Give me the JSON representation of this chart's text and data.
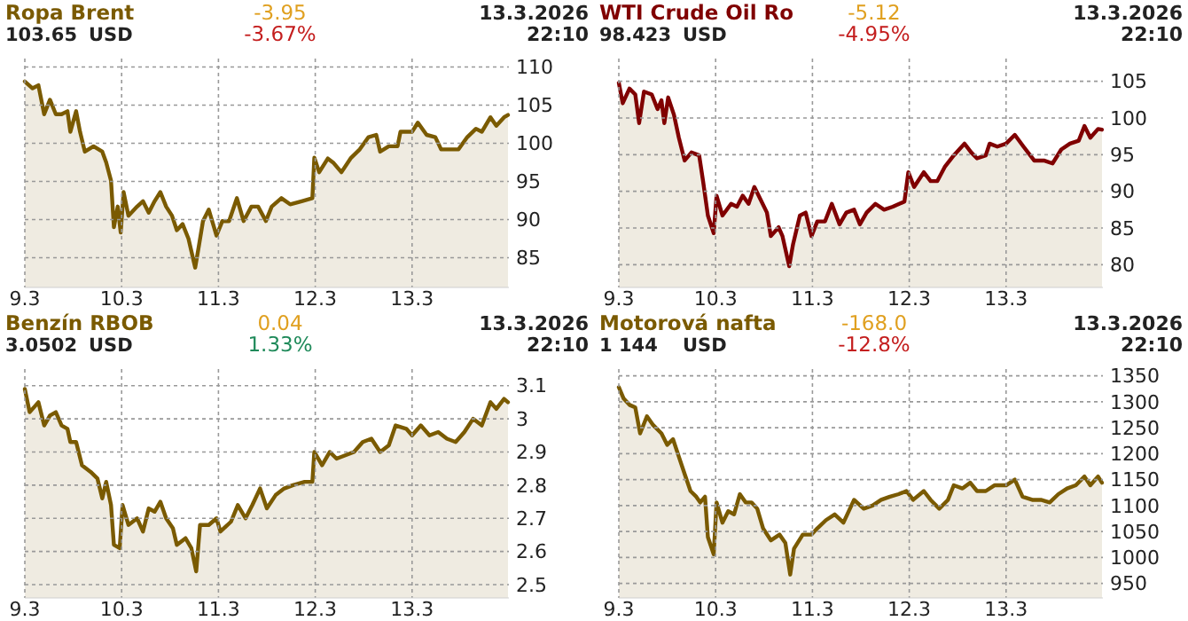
{
  "chart_data": [
    {
      "type": "area",
      "title": "Ropa Brent",
      "annotations": [
        "103.65",
        "USD",
        "-3.95",
        "-3.67%",
        "13.3.2026",
        "22:10"
      ],
      "x": [
        "2026-03-09T00:00",
        "2026-03-09T01:55",
        "2026-03-09T03:22",
        "2026-03-09T04:48",
        "2026-03-09T06:14",
        "2026-03-09T07:41",
        "2026-03-09T09:07",
        "2026-03-09T10:34",
        "2026-03-09T11:17",
        "2026-03-09T12:43",
        "2026-03-09T13:41",
        "2026-03-09T14:53",
        "2026-03-09T17:02",
        "2026-03-09T19:12",
        "2026-03-09T20:10",
        "2026-03-09T21:22",
        "2026-03-09T22:05",
        "2026-03-09T23:02",
        "2026-03-09T23:46",
        "2026-03-10T00:29",
        "2026-03-10T01:41",
        "2026-03-10T03:50",
        "2026-03-10T05:17",
        "2026-03-10T06:43",
        "2026-03-10T08:10",
        "2026-03-10T09:36",
        "2026-03-10T11:02",
        "2026-03-10T12:29",
        "2026-03-10T13:41",
        "2026-03-10T15:07",
        "2026-03-10T16:34",
        "2026-03-10T18:14",
        "2026-03-10T19:12",
        "2026-03-10T20:10",
        "2026-03-10T21:36",
        "2026-03-10T23:31",
        "2026-03-11T00:58",
        "2026-03-11T02:38",
        "2026-03-11T04:34",
        "2026-03-11T06:14",
        "2026-03-11T08:10",
        "2026-03-11T09:50",
        "2026-03-11T11:46",
        "2026-03-11T13:12",
        "2026-03-11T15:36",
        "2026-03-11T17:46",
        "2026-03-11T20:38",
        "2026-03-11T23:17",
        "2026-03-11T23:46",
        "2026-03-12T00:58",
        "2026-03-12T03:07",
        "2026-03-12T04:34",
        "2026-03-12T06:29",
        "2026-03-12T08:53",
        "2026-03-12T11:02",
        "2026-03-12T13:12",
        "2026-03-12T15:07",
        "2026-03-12T16:05",
        "2026-03-12T18:14",
        "2026-03-12T20:24",
        "2026-03-12T21:07",
        "2026-03-13T00:00",
        "2026-03-13T01:26",
        "2026-03-13T03:36",
        "2026-03-13T05:46",
        "2026-03-13T07:12",
        "2026-03-13T09:22",
        "2026-03-13T11:31",
        "2026-03-13T13:41",
        "2026-03-13T15:50",
        "2026-03-13T17:17",
        "2026-03-13T19:26",
        "2026-03-13T20:53",
        "2026-03-13T22:48",
        "2026-03-13T23:46"
      ],
      "series": [
        {
          "color": "#7a5a00",
          "values": [
            108.1,
            107.2,
            107.6,
            103.8,
            105.7,
            103.8,
            103.8,
            104.2,
            101.5,
            104.2,
            101.5,
            98.9,
            99.6,
            98.9,
            97.5,
            95.1,
            89,
            91.7,
            88.3,
            93.6,
            90.5,
            91.7,
            92.4,
            90.9,
            92.4,
            93.6,
            91.7,
            90.5,
            88.6,
            89.4,
            87.5,
            83.7,
            86.7,
            89.8,
            91.3,
            87.9,
            89.8,
            89.8,
            92.8,
            89.8,
            91.7,
            91.7,
            89.8,
            91.7,
            92.8,
            92,
            92.4,
            92.8,
            98.1,
            96.2,
            98,
            97.4,
            96.2,
            98.1,
            99.2,
            100.8,
            101.1,
            98.9,
            99.6,
            99.6,
            101.5,
            101.5,
            102.7,
            101.1,
            100.8,
            99.2,
            99.2,
            99.2,
            100.8,
            101.9,
            101.5,
            103.4,
            102.3,
            103.4,
            103.7
          ]
        }
      ],
      "xlim": [
        "2026-03-09",
        "2026-03-14"
      ],
      "xticks": [
        {
          "value": "2026-03-09",
          "label": "9.3"
        },
        {
          "value": "2026-03-10",
          "label": "10.3"
        },
        {
          "value": "2026-03-11",
          "label": "11.3"
        },
        {
          "value": "2026-03-12",
          "label": "12.3"
        },
        {
          "value": "2026-03-13",
          "label": "13.3"
        }
      ],
      "ylim": [
        81.1,
        111.1
      ],
      "yticks": [
        85,
        90,
        95,
        100,
        105,
        110
      ],
      "grid": true
    },
    {
      "type": "area",
      "title": "WTI Crude Oil Ro",
      "annotations": [
        "98.423",
        "USD",
        "-5.12",
        "-4.95%",
        "13.3.2026",
        "22:10"
      ],
      "x": [
        "2026-03-09T00:00",
        "2026-03-09T00:58",
        "2026-03-09T02:38",
        "2026-03-09T04:05",
        "2026-03-09T05:02",
        "2026-03-09T06:14",
        "2026-03-09T08:10",
        "2026-03-09T09:36",
        "2026-03-09T10:34",
        "2026-03-09T11:17",
        "2026-03-09T12:14",
        "2026-03-09T13:41",
        "2026-03-09T14:53",
        "2026-03-09T16:19",
        "2026-03-09T18:00",
        "2026-03-09T19:55",
        "2026-03-09T20:53",
        "2026-03-09T22:05",
        "2026-03-09T23:31",
        "2026-03-10T00:14",
        "2026-03-10T01:41",
        "2026-03-10T03:50",
        "2026-03-10T05:17",
        "2026-03-10T06:43",
        "2026-03-10T08:10",
        "2026-03-10T09:36",
        "2026-03-10T11:02",
        "2026-03-10T12:43",
        "2026-03-10T13:41",
        "2026-03-10T15:36",
        "2026-03-10T16:34",
        "2026-03-10T18:14",
        "2026-03-10T19:12",
        "2026-03-10T20:53",
        "2026-03-10T22:19",
        "2026-03-10T23:46",
        "2026-03-11T01:12",
        "2026-03-11T03:07",
        "2026-03-11T04:48",
        "2026-03-11T06:43",
        "2026-03-11T08:24",
        "2026-03-11T10:19",
        "2026-03-11T11:46",
        "2026-03-11T13:26",
        "2026-03-11T15:36",
        "2026-03-11T17:46",
        "2026-03-11T19:55",
        "2026-03-11T22:48",
        "2026-03-11T23:46",
        "2026-03-12T01:12",
        "2026-03-12T03:36",
        "2026-03-12T05:17",
        "2026-03-12T06:58",
        "2026-03-12T08:53",
        "2026-03-12T11:02",
        "2026-03-12T13:41",
        "2026-03-12T15:22",
        "2026-03-12T16:48",
        "2026-03-12T18:58",
        "2026-03-12T19:55",
        "2026-03-12T21:50",
        "2026-03-13T00:00",
        "2026-03-13T02:10",
        "2026-03-13T04:19",
        "2026-03-13T06:58",
        "2026-03-13T09:22",
        "2026-03-13T11:31",
        "2026-03-13T13:41",
        "2026-03-13T15:50",
        "2026-03-13T18:00",
        "2026-03-13T19:26",
        "2026-03-13T20:53",
        "2026-03-13T22:48",
        "2026-03-13T23:46"
      ],
      "series": [
        {
          "color": "#800000",
          "values": [
            104.8,
            102,
            104,
            103.2,
            99.3,
            103.6,
            103.2,
            101.2,
            102.4,
            99.3,
            102.8,
            100.4,
            97.3,
            94.2,
            95.3,
            94.9,
            91.4,
            86.7,
            84.3,
            89.4,
            86.7,
            88.3,
            87.9,
            89.4,
            88.3,
            90.6,
            89,
            87.1,
            83.9,
            85.1,
            83.9,
            79.8,
            82.8,
            86.7,
            87.1,
            83.9,
            85.9,
            85.9,
            88.3,
            85.5,
            87.1,
            87.5,
            85.5,
            87.1,
            88.3,
            87.5,
            87.9,
            88.6,
            92.6,
            90.6,
            92.6,
            91.4,
            91.4,
            93.4,
            94.9,
            96.5,
            95.3,
            94.5,
            94.9,
            96.5,
            96.1,
            96.5,
            97.7,
            96.1,
            94.2,
            94.2,
            93.8,
            95.7,
            96.5,
            96.9,
            98.9,
            97.3,
            98.5,
            98.4
          ]
        }
      ],
      "xlim": [
        "2026-03-09",
        "2026-03-14"
      ],
      "xticks": [
        {
          "value": "2026-03-09",
          "label": "9.3"
        },
        {
          "value": "2026-03-10",
          "label": "10.3"
        },
        {
          "value": "2026-03-11",
          "label": "11.3"
        },
        {
          "value": "2026-03-12",
          "label": "12.3"
        },
        {
          "value": "2026-03-13",
          "label": "13.3"
        }
      ],
      "ylim": [
        76.9,
        108.1
      ],
      "yticks": [
        80,
        85,
        90,
        95,
        100,
        105
      ],
      "grid": true
    },
    {
      "type": "area",
      "title": "Benzín RBOB",
      "annotations": [
        "3.0502",
        "USD",
        "0.04",
        "1.33%",
        "13.3.2026",
        "22:10"
      ],
      "x": [
        "2026-03-09T00:00",
        "2026-03-09T01:12",
        "2026-03-09T03:22",
        "2026-03-09T04:48",
        "2026-03-09T06:14",
        "2026-03-09T07:41",
        "2026-03-09T09:07",
        "2026-03-09T10:34",
        "2026-03-09T11:17",
        "2026-03-09T12:43",
        "2026-03-09T14:10",
        "2026-03-09T16:19",
        "2026-03-09T18:00",
        "2026-03-09T19:12",
        "2026-03-09T20:10",
        "2026-03-09T21:22",
        "2026-03-09T22:05",
        "2026-03-09T23:31",
        "2026-03-10T00:14",
        "2026-03-10T01:41",
        "2026-03-10T03:50",
        "2026-03-10T05:17",
        "2026-03-10T06:43",
        "2026-03-10T08:10",
        "2026-03-10T09:36",
        "2026-03-10T11:02",
        "2026-03-10T12:43",
        "2026-03-10T13:41",
        "2026-03-10T15:50",
        "2026-03-10T17:17",
        "2026-03-10T18:29",
        "2026-03-10T19:26",
        "2026-03-10T21:36",
        "2026-03-10T23:31",
        "2026-03-11T00:29",
        "2026-03-11T03:07",
        "2026-03-11T04:48",
        "2026-03-11T06:43",
        "2026-03-11T08:24",
        "2026-03-11T10:19",
        "2026-03-11T12:00",
        "2026-03-11T14:10",
        "2026-03-11T16:19",
        "2026-03-11T18:29",
        "2026-03-11T21:22",
        "2026-03-11T23:17",
        "2026-03-11T23:46",
        "2026-03-12T01:41",
        "2026-03-12T03:36",
        "2026-03-12T05:17",
        "2026-03-12T07:26",
        "2026-03-12T09:36",
        "2026-03-12T11:46",
        "2026-03-12T13:55",
        "2026-03-12T16:05",
        "2026-03-12T18:14",
        "2026-03-12T19:55",
        "2026-03-12T22:34",
        "2026-03-13T00:00",
        "2026-03-13T02:10",
        "2026-03-13T04:19",
        "2026-03-13T06:29",
        "2026-03-13T08:38",
        "2026-03-13T10:48",
        "2026-03-13T12:58",
        "2026-03-13T15:07",
        "2026-03-13T17:17",
        "2026-03-13T19:26",
        "2026-03-13T20:53",
        "2026-03-13T22:48",
        "2026-03-13T23:46"
      ],
      "series": [
        {
          "color": "#7a5a00",
          "values": [
            3.09,
            3.02,
            3.05,
            2.98,
            3.01,
            3.02,
            2.98,
            2.97,
            2.93,
            2.93,
            2.86,
            2.84,
            2.82,
            2.76,
            2.81,
            2.74,
            2.62,
            2.61,
            2.74,
            2.68,
            2.7,
            2.66,
            2.73,
            2.72,
            2.75,
            2.7,
            2.67,
            2.62,
            2.64,
            2.61,
            2.54,
            2.68,
            2.68,
            2.7,
            2.66,
            2.69,
            2.74,
            2.7,
            2.74,
            2.79,
            2.73,
            2.77,
            2.79,
            2.8,
            2.81,
            2.81,
            2.9,
            2.86,
            2.9,
            2.88,
            2.89,
            2.9,
            2.93,
            2.94,
            2.9,
            2.92,
            2.98,
            2.97,
            2.95,
            2.98,
            2.95,
            2.96,
            2.94,
            2.93,
            2.96,
            3,
            2.98,
            3.05,
            3.03,
            3.06,
            3.05
          ]
        }
      ],
      "xlim": [
        "2026-03-09",
        "2026-03-14"
      ],
      "xticks": [
        {
          "value": "2026-03-09",
          "label": "9.3"
        },
        {
          "value": "2026-03-10",
          "label": "10.3"
        },
        {
          "value": "2026-03-11",
          "label": "11.3"
        },
        {
          "value": "2026-03-12",
          "label": "12.3"
        },
        {
          "value": "2026-03-13",
          "label": "13.3"
        }
      ],
      "ylim": [
        2.46,
        3.15
      ],
      "yticks": [
        2.5,
        2.6,
        2.7,
        2.8,
        2.9,
        3,
        3.1
      ],
      "grid": true
    },
    {
      "type": "area",
      "title": "Motorová nafta",
      "annotations": [
        "1 144",
        "USD",
        "-168.0",
        "-12.8%",
        "13.3.2026",
        "22:10"
      ],
      "x": [
        "2026-03-09T00:00",
        "2026-03-09T01:12",
        "2026-03-09T02:38",
        "2026-03-09T04:05",
        "2026-03-09T05:17",
        "2026-03-09T06:58",
        "2026-03-09T08:24",
        "2026-03-09T10:34",
        "2026-03-09T12:00",
        "2026-03-09T13:26",
        "2026-03-09T14:53",
        "2026-03-09T16:19",
        "2026-03-09T17:46",
        "2026-03-09T19:12",
        "2026-03-09T20:10",
        "2026-03-09T21:22",
        "2026-03-09T22:05",
        "2026-03-09T23:31",
        "2026-03-10T00:14",
        "2026-03-10T01:41",
        "2026-03-10T03:07",
        "2026-03-10T04:34",
        "2026-03-10T06:00",
        "2026-03-10T07:26",
        "2026-03-10T08:53",
        "2026-03-10T10:19",
        "2026-03-10T11:46",
        "2026-03-10T13:41",
        "2026-03-10T15:50",
        "2026-03-10T17:17",
        "2026-03-10T18:29",
        "2026-03-10T19:26",
        "2026-03-10T21:36",
        "2026-03-10T23:46",
        "2026-03-11T01:12",
        "2026-03-11T03:22",
        "2026-03-11T05:31",
        "2026-03-11T07:41",
        "2026-03-11T10:19",
        "2026-03-11T12:43",
        "2026-03-11T14:53",
        "2026-03-11T17:02",
        "2026-03-11T19:12",
        "2026-03-11T21:22",
        "2026-03-11T23:17",
        "2026-03-12T00:58",
        "2026-03-12T03:36",
        "2026-03-12T05:17",
        "2026-03-12T07:26",
        "2026-03-12T09:36",
        "2026-03-12T11:02",
        "2026-03-12T13:12",
        "2026-03-12T15:07",
        "2026-03-12T16:48",
        "2026-03-12T18:58",
        "2026-03-12T21:07",
        "2026-03-13T00:00",
        "2026-03-13T02:10",
        "2026-03-13T04:05",
        "2026-03-13T06:29",
        "2026-03-13T08:38",
        "2026-03-13T10:48",
        "2026-03-13T12:58",
        "2026-03-13T15:07",
        "2026-03-13T17:17",
        "2026-03-13T19:26",
        "2026-03-13T20:53",
        "2026-03-13T22:48",
        "2026-03-13T23:46"
      ],
      "series": [
        {
          "color": "#7a5a00",
          "values": [
            1328,
            1306,
            1294,
            1289,
            1239,
            1272,
            1256,
            1239,
            1217,
            1228,
            1194,
            1161,
            1128,
            1117,
            1106,
            1117,
            1039,
            1006,
            1106,
            1067,
            1089,
            1083,
            1122,
            1106,
            1106,
            1094,
            1056,
            1033,
            1044,
            1028,
            967,
            1017,
            1044,
            1044,
            1056,
            1072,
            1083,
            1067,
            1111,
            1094,
            1100,
            1111,
            1117,
            1122,
            1128,
            1111,
            1128,
            1111,
            1094,
            1111,
            1139,
            1133,
            1144,
            1128,
            1128,
            1139,
            1139,
            1150,
            1117,
            1111,
            1111,
            1106,
            1122,
            1133,
            1139,
            1156,
            1139,
            1156,
            1144
          ]
        }
      ],
      "xlim": [
        "2026-03-09",
        "2026-03-14"
      ],
      "xticks": [
        {
          "value": "2026-03-09",
          "label": "9.3"
        },
        {
          "value": "2026-03-10",
          "label": "10.3"
        },
        {
          "value": "2026-03-11",
          "label": "11.3"
        },
        {
          "value": "2026-03-12",
          "label": "12.3"
        },
        {
          "value": "2026-03-13",
          "label": "13.3"
        }
      ],
      "ylim": [
        922,
        1363
      ],
      "yticks": [
        950,
        1000,
        1050,
        1100,
        1150,
        1200,
        1250,
        1300,
        1350
      ],
      "grid": true
    }
  ]
}
